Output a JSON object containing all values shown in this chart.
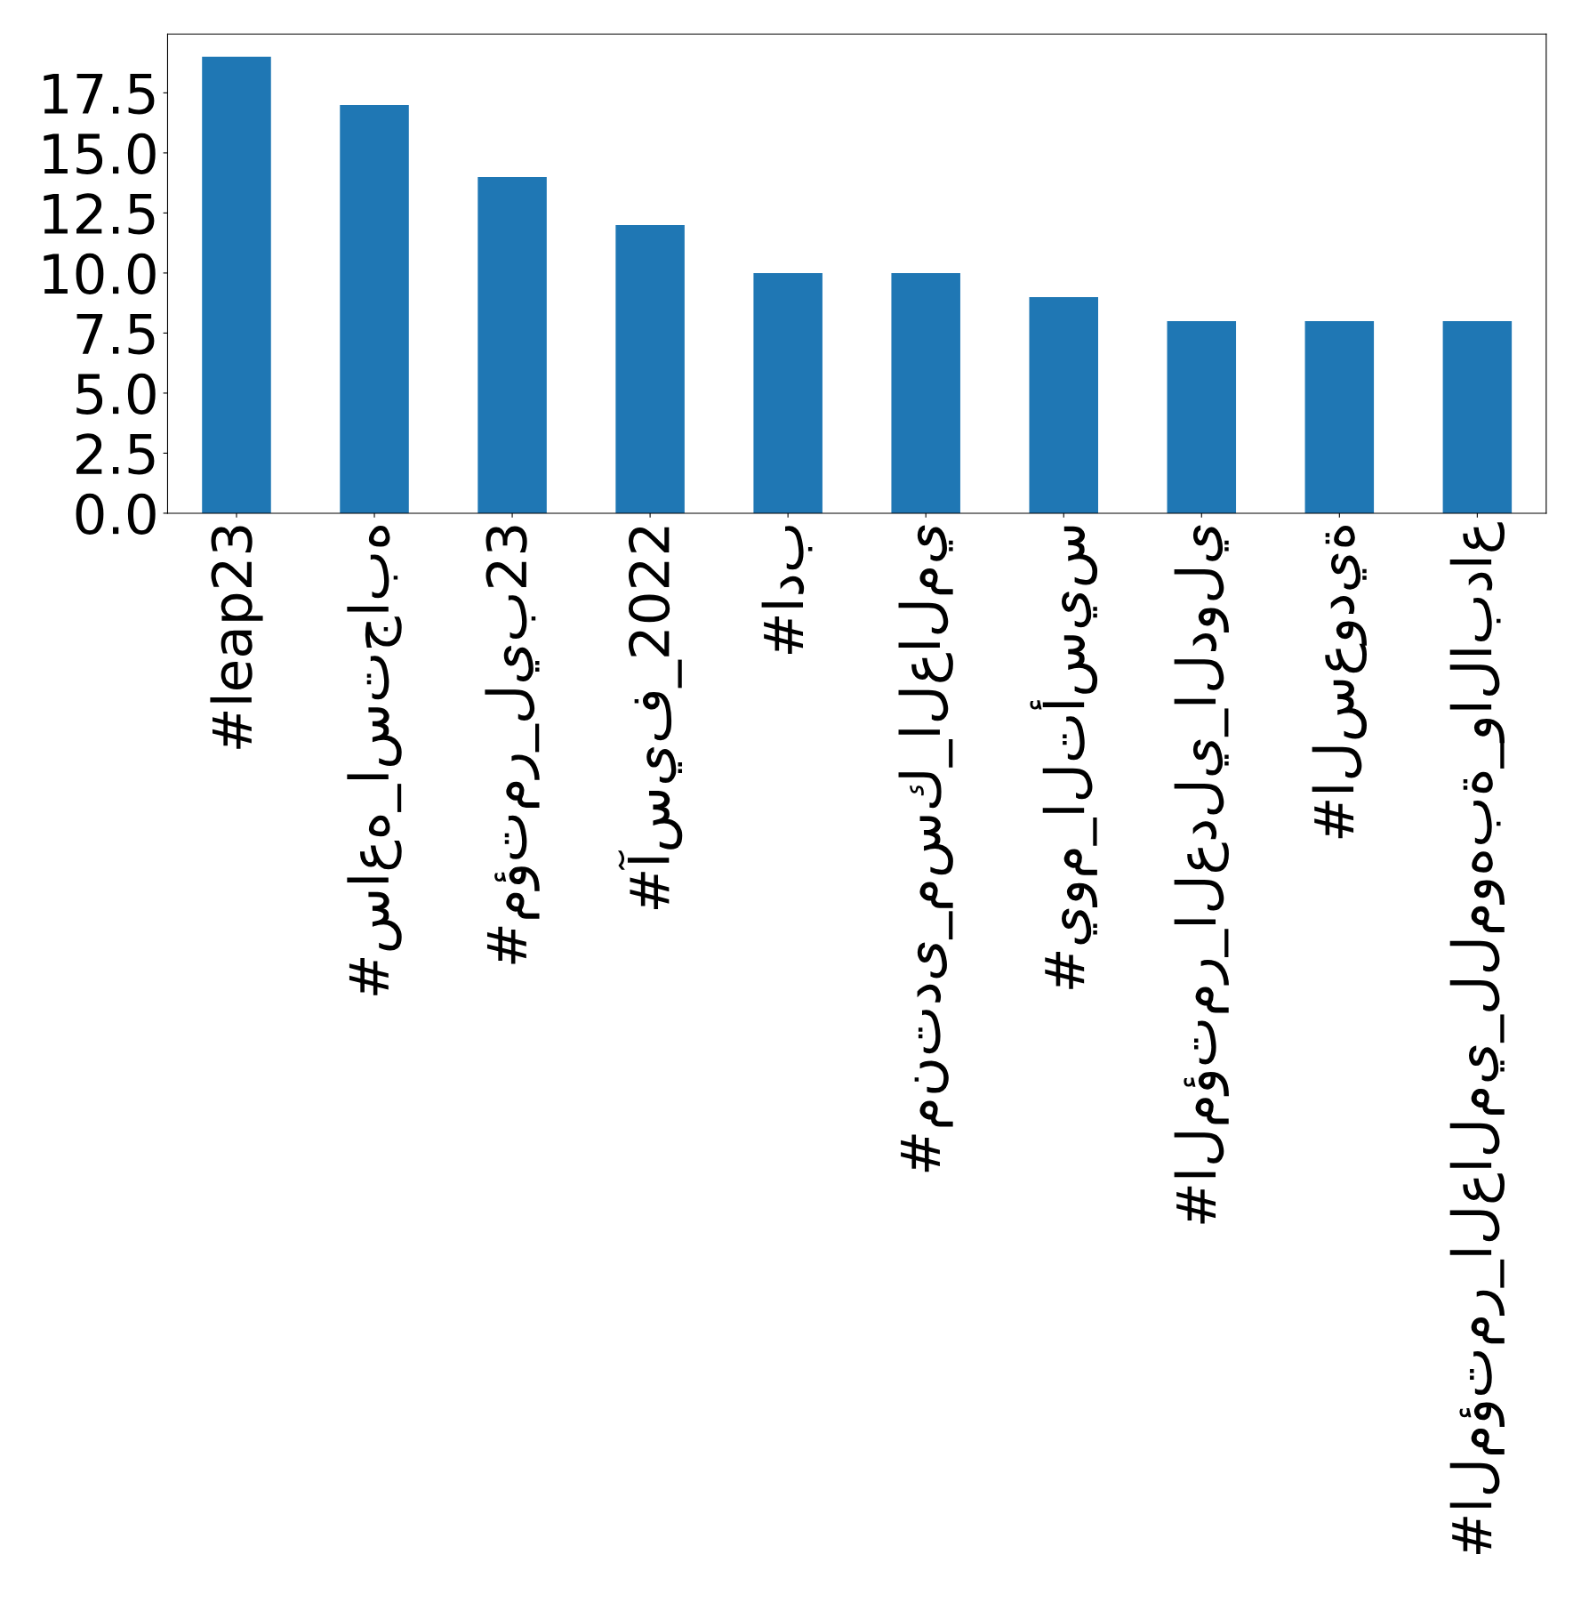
{
  "chart_data": {
    "type": "bar",
    "categories": [
      "#leap23",
      "#ساعه_استجابه",
      "#مؤتمر_ليب23",
      "#آسيف_2022",
      "#ادب",
      "#منتدى_مسك_العالمي",
      "#يوم_التأسيس",
      "#المؤتمر_العدلي_الدولي",
      "#السعودية",
      "#المؤتمر_العالمي_للموهبة_والابداع"
    ],
    "values": [
      19,
      17,
      14,
      12,
      10,
      10,
      9,
      8,
      8,
      8
    ],
    "color": "#1f77b4",
    "ylim": [
      0,
      19.95
    ],
    "yticks": [
      {
        "value": 0,
        "label": "0.0"
      },
      2.5,
      {
        "value": 5,
        "label": "5.0"
      },
      7.5,
      {
        "value": 10,
        "label": "10.0"
      },
      12.5,
      {
        "value": 15,
        "label": "15.0"
      },
      17.5
    ],
    "grid": false,
    "legend": false
  }
}
